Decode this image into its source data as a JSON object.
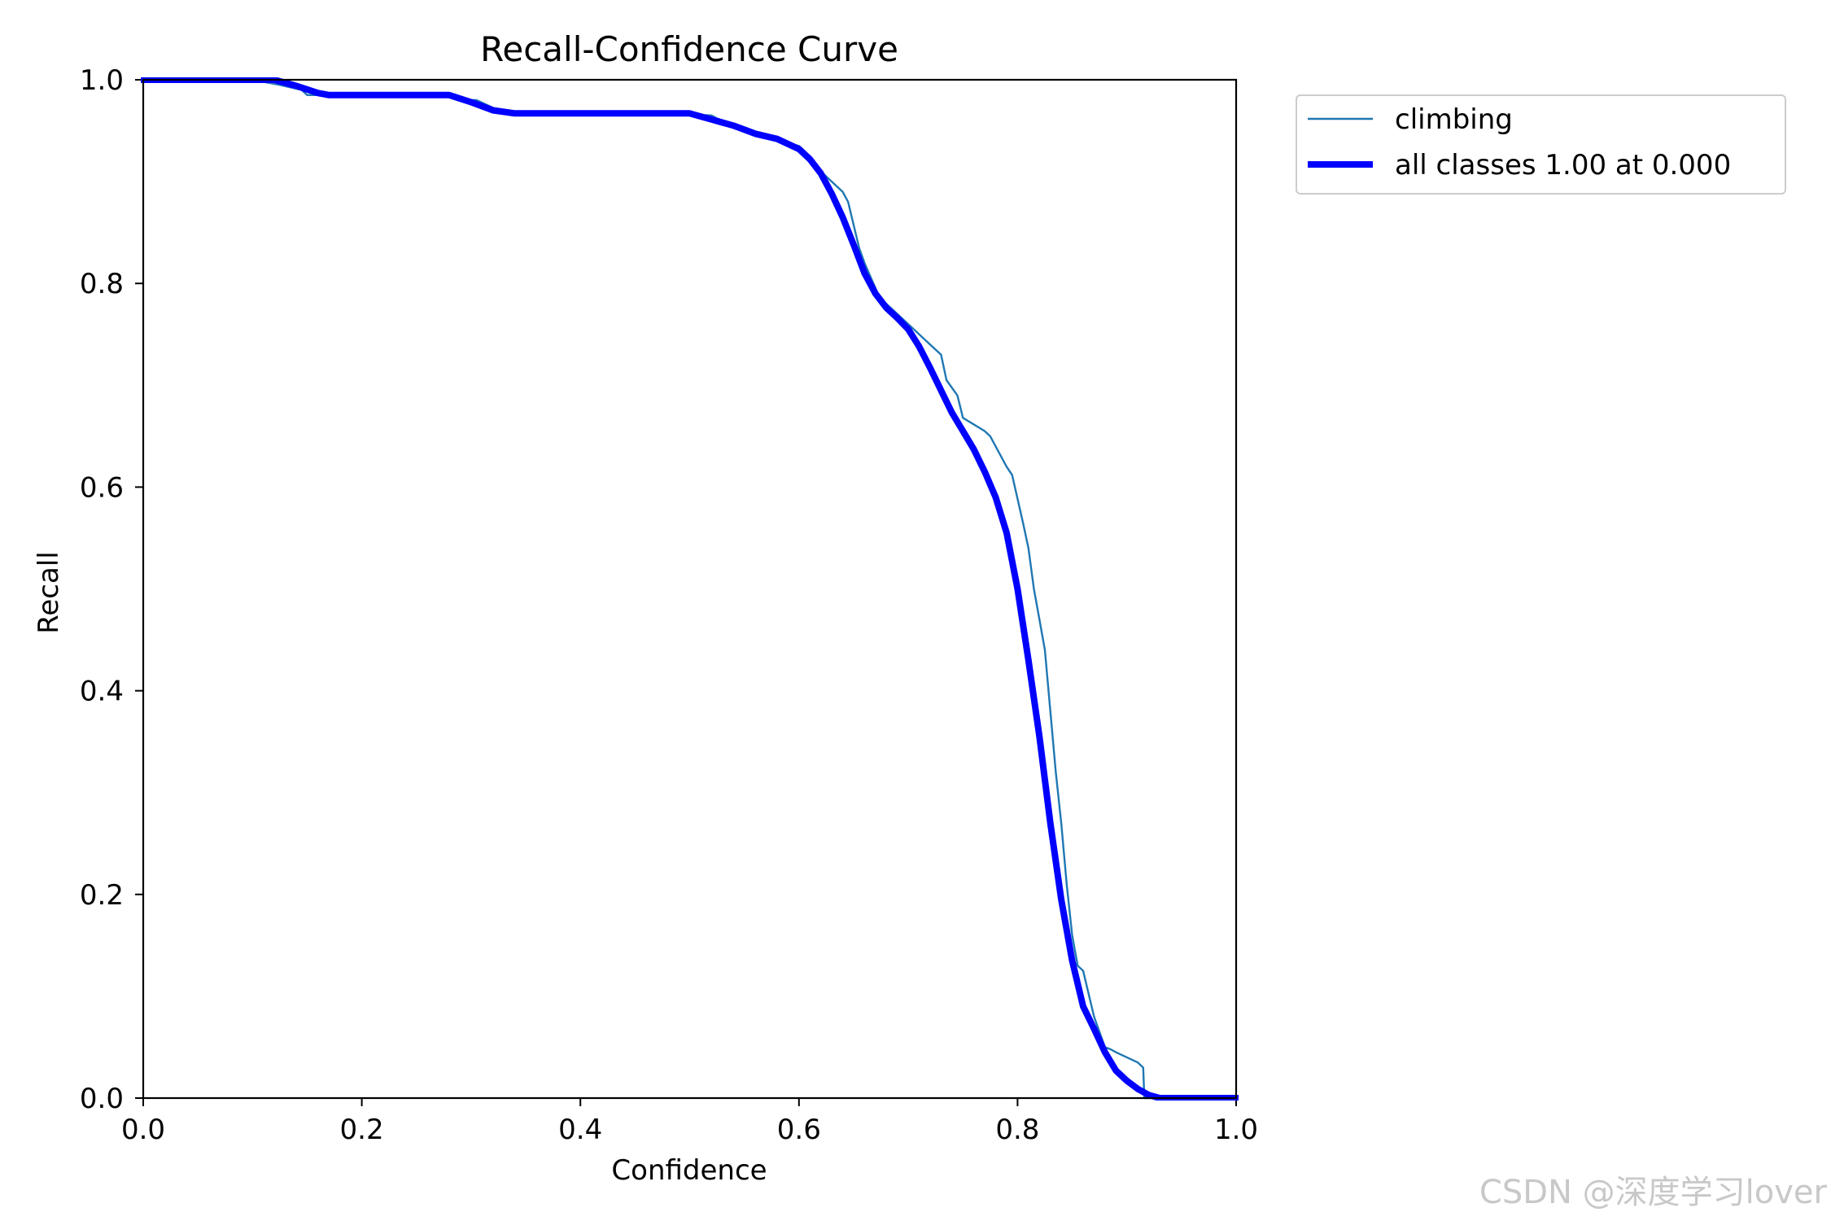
{
  "chart_data": {
    "type": "line",
    "title": "Recall-Confidence Curve",
    "xlabel": "Confidence",
    "ylabel": "Recall",
    "xlim": [
      0.0,
      1.0
    ],
    "ylim": [
      0.0,
      1.0
    ],
    "xticks": [
      0.0,
      0.2,
      0.4,
      0.6,
      0.8,
      1.0
    ],
    "xtick_labels": [
      "0.0",
      "0.2",
      "0.4",
      "0.6",
      "0.8",
      "1.0"
    ],
    "yticks": [
      0.0,
      0.2,
      0.4,
      0.6,
      0.8,
      1.0
    ],
    "ytick_labels": [
      "0.0",
      "0.2",
      "0.4",
      "0.6",
      "0.8",
      "1.0"
    ],
    "grid": false,
    "legend_position": "outside-top-right",
    "series": [
      {
        "name": "climbing",
        "color": "#1f77b4",
        "style": "thin",
        "x": [
          0.0,
          0.1,
          0.125,
          0.145,
          0.15,
          0.165,
          0.17,
          0.28,
          0.3,
          0.305,
          0.325,
          0.33,
          0.345,
          0.5,
          0.52,
          0.525,
          0.535,
          0.54,
          0.56,
          0.58,
          0.6,
          0.605,
          0.61,
          0.64,
          0.645,
          0.655,
          0.66,
          0.675,
          0.68,
          0.7,
          0.73,
          0.735,
          0.745,
          0.75,
          0.77,
          0.775,
          0.79,
          0.795,
          0.805,
          0.81,
          0.815,
          0.82,
          0.825,
          0.83,
          0.835,
          0.84,
          0.845,
          0.85,
          0.855,
          0.86,
          0.87,
          0.88,
          0.885,
          0.89,
          0.91,
          0.915,
          0.916,
          0.93,
          0.95,
          1.0
        ],
        "y": [
          1.0,
          1.0,
          0.995,
          0.99,
          0.985,
          0.985,
          0.983,
          0.983,
          0.98,
          0.98,
          0.97,
          0.968,
          0.966,
          0.966,
          0.965,
          0.962,
          0.958,
          0.955,
          0.948,
          0.94,
          0.935,
          0.93,
          0.92,
          0.89,
          0.88,
          0.835,
          0.82,
          0.783,
          0.78,
          0.76,
          0.73,
          0.705,
          0.69,
          0.668,
          0.655,
          0.65,
          0.62,
          0.612,
          0.565,
          0.54,
          0.5,
          0.47,
          0.44,
          0.38,
          0.32,
          0.27,
          0.21,
          0.16,
          0.13,
          0.125,
          0.08,
          0.05,
          0.048,
          0.045,
          0.035,
          0.03,
          0.0,
          0.0,
          0.0,
          0.0
        ]
      },
      {
        "name": "all classes 1.00 at 0.000",
        "color": "#0000ff",
        "style": "thick",
        "x": [
          0.0,
          0.05,
          0.1,
          0.12,
          0.14,
          0.16,
          0.17,
          0.2,
          0.25,
          0.28,
          0.3,
          0.32,
          0.34,
          0.36,
          0.4,
          0.45,
          0.5,
          0.52,
          0.54,
          0.56,
          0.58,
          0.6,
          0.61,
          0.62,
          0.63,
          0.64,
          0.65,
          0.66,
          0.67,
          0.68,
          0.69,
          0.7,
          0.71,
          0.72,
          0.73,
          0.74,
          0.75,
          0.76,
          0.77,
          0.78,
          0.79,
          0.8,
          0.81,
          0.82,
          0.83,
          0.84,
          0.85,
          0.86,
          0.87,
          0.88,
          0.89,
          0.9,
          0.91,
          0.92,
          0.93,
          0.94,
          0.95,
          0.97,
          1.0
        ],
        "y": [
          1.0,
          1.0,
          1.0,
          1.0,
          0.994,
          0.987,
          0.985,
          0.985,
          0.985,
          0.985,
          0.978,
          0.97,
          0.967,
          0.967,
          0.967,
          0.967,
          0.967,
          0.961,
          0.955,
          0.947,
          0.942,
          0.932,
          0.922,
          0.908,
          0.888,
          0.865,
          0.838,
          0.81,
          0.79,
          0.776,
          0.766,
          0.755,
          0.738,
          0.717,
          0.695,
          0.673,
          0.655,
          0.637,
          0.615,
          0.59,
          0.555,
          0.5,
          0.43,
          0.355,
          0.27,
          0.195,
          0.135,
          0.09,
          0.068,
          0.045,
          0.027,
          0.017,
          0.009,
          0.003,
          0.0,
          0.0,
          0.0,
          0.0,
          0.0
        ]
      }
    ]
  },
  "watermark": "CSDN @深度学习lover"
}
